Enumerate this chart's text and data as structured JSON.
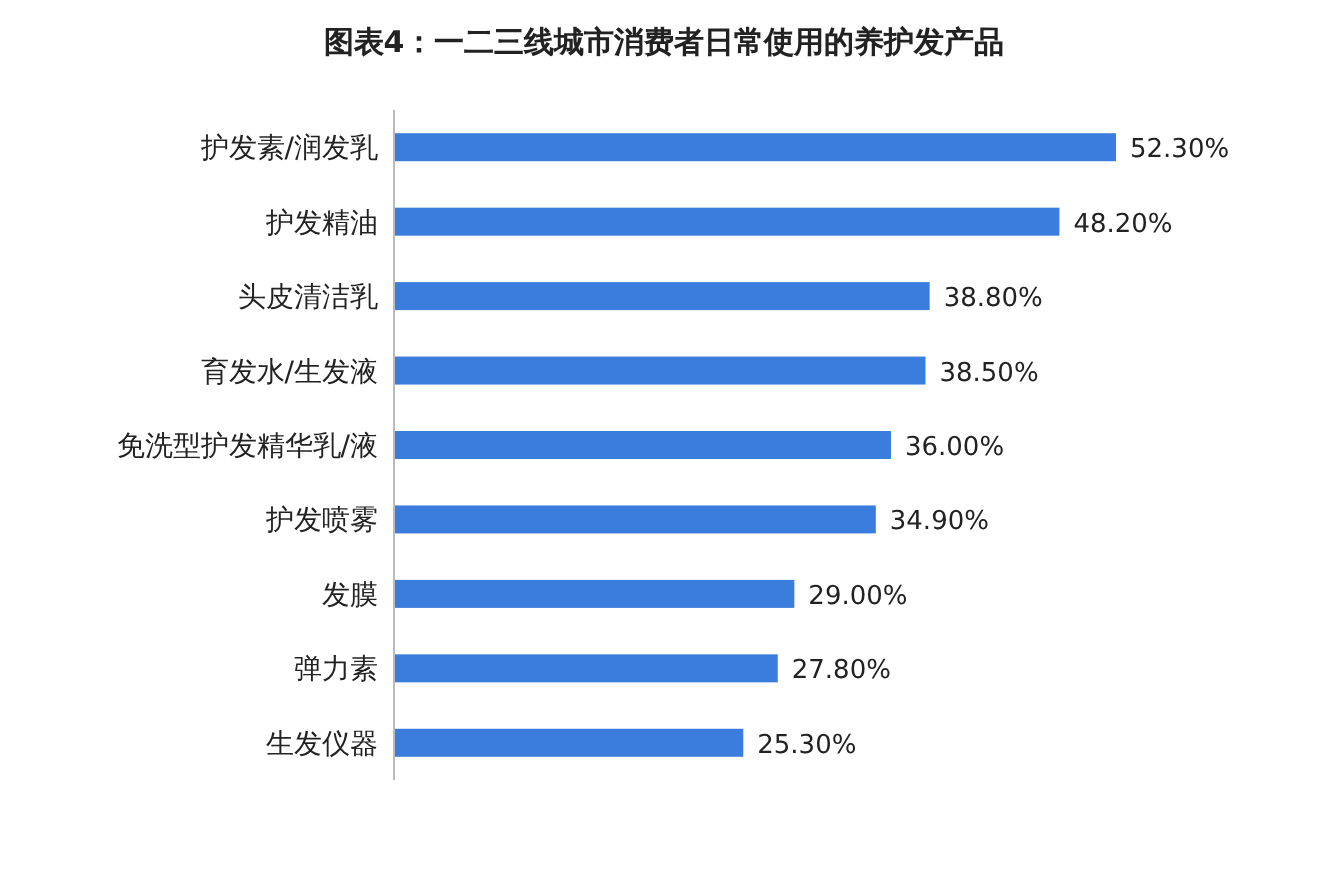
{
  "chart_data": {
    "type": "bar",
    "orientation": "horizontal",
    "title": "图表4：一二三线城市消费者日常使用的养护发产品",
    "categories": [
      "护发素/润发乳",
      "护发精油",
      "头皮清洁乳",
      "育发水/生发液",
      "免洗型护发精华乳/液",
      "护发喷雾",
      "发膜",
      "弹力素",
      "生发仪器"
    ],
    "values": [
      52.3,
      48.2,
      38.8,
      38.5,
      36.0,
      34.9,
      29.0,
      27.8,
      25.3
    ],
    "value_labels": [
      "52.30%",
      "48.20%",
      "38.80%",
      "38.50%",
      "36.00%",
      "34.90%",
      "29.00%",
      "27.80%",
      "25.30%"
    ],
    "color": "#3b7ddd"
  }
}
